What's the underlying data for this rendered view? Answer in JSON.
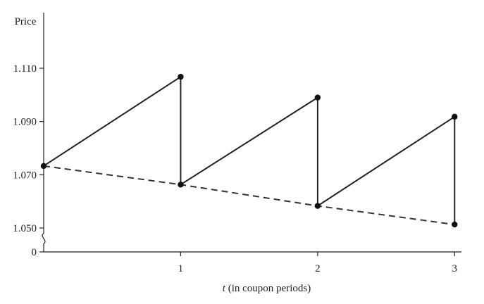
{
  "chart_data": {
    "type": "line",
    "ylabel": "Price",
    "xlabel_var": "t",
    "xlabel_rest": " (in coupon periods)",
    "xlim": [
      0,
      3.05
    ],
    "ylim": [
      1.045,
      1.12
    ],
    "y_break": true,
    "y_zero_label": "0",
    "x_ticks": [
      {
        "value": 1,
        "label": "1"
      },
      {
        "value": 2,
        "label": "2"
      },
      {
        "value": 3,
        "label": "3"
      }
    ],
    "y_ticks": [
      {
        "value": 1.05,
        "label": "1.050"
      },
      {
        "value": 1.07,
        "label": "1.070"
      },
      {
        "value": 1.09,
        "label": "1.090"
      },
      {
        "value": 1.11,
        "label": "1.110"
      }
    ],
    "series": [
      {
        "style": "solid",
        "points": [
          {
            "x": 0,
            "y": 1.0733
          },
          {
            "x": 1,
            "y": 1.1068
          },
          {
            "x": 1,
            "y": 1.0663
          },
          {
            "x": 2,
            "y": 1.099
          },
          {
            "x": 2,
            "y": 1.0583
          },
          {
            "x": 3,
            "y": 1.0918
          },
          {
            "x": 3,
            "y": 1.0513
          }
        ]
      },
      {
        "style": "dashed",
        "points": [
          {
            "x": 0,
            "y": 1.0733
          },
          {
            "x": 1,
            "y": 1.0663
          },
          {
            "x": 2,
            "y": 1.0583
          },
          {
            "x": 3,
            "y": 1.0513
          }
        ]
      }
    ],
    "markers": [
      {
        "x": 0,
        "y": 1.0733
      },
      {
        "x": 1,
        "y": 1.1068
      },
      {
        "x": 1,
        "y": 1.0663
      },
      {
        "x": 2,
        "y": 1.099
      },
      {
        "x": 2,
        "y": 1.0583
      },
      {
        "x": 3,
        "y": 1.0918
      },
      {
        "x": 3,
        "y": 1.0513
      }
    ]
  }
}
